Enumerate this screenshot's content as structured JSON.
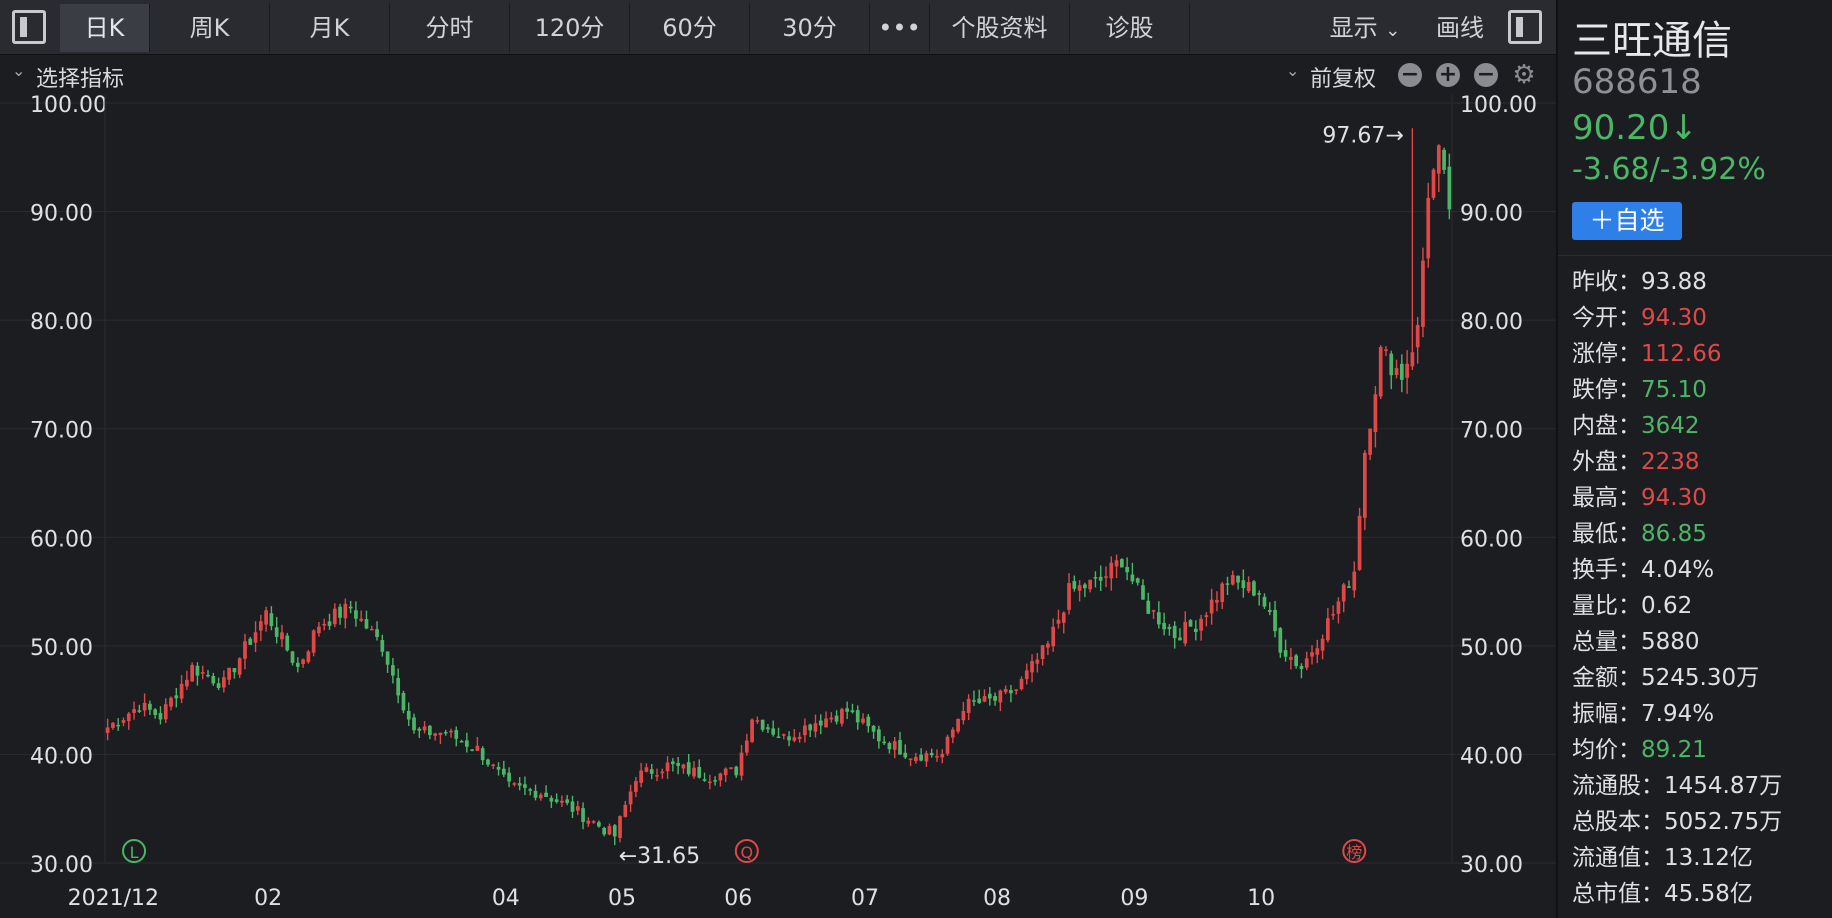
{
  "toolbar": {
    "tabs": [
      {
        "label": "日K",
        "active": true
      },
      {
        "label": "周K"
      },
      {
        "label": "月K"
      },
      {
        "label": "分时"
      },
      {
        "label": "120分"
      },
      {
        "label": "60分"
      },
      {
        "label": "30分"
      },
      {
        "label": "•••"
      },
      {
        "label": "个股资料"
      },
      {
        "label": "诊股"
      }
    ],
    "display_label": "显示",
    "draw_label": "画线"
  },
  "subbar": {
    "indicator_label": "选择指标",
    "adjust_label": "前复权"
  },
  "sidebar": {
    "name": "三旺通信",
    "code": "688618",
    "price": "90.20↓",
    "change": "-3.68/-3.92%",
    "fav_label": "＋自选",
    "stats": [
      {
        "label": "昨收：",
        "value": "93.88",
        "color": "white"
      },
      {
        "label": "今开：",
        "value": "94.30",
        "color": "red"
      },
      {
        "label": "涨停：",
        "value": "112.66",
        "color": "red"
      },
      {
        "label": "跌停：",
        "value": "75.10",
        "color": "green"
      },
      {
        "label": "内盘：",
        "value": "3642",
        "color": "green"
      },
      {
        "label": "外盘：",
        "value": "2238",
        "color": "red"
      },
      {
        "label": "最高：",
        "value": "94.30",
        "color": "red"
      },
      {
        "label": "最低：",
        "value": "86.85",
        "color": "green"
      },
      {
        "label": "换手：",
        "value": "4.04%",
        "color": "white"
      },
      {
        "label": "量比：",
        "value": "0.62",
        "color": "white"
      },
      {
        "label": "总量：",
        "value": "5880",
        "color": "white"
      },
      {
        "label": "金额：",
        "value": "5245.30万",
        "color": "white"
      },
      {
        "label": "振幅：",
        "value": "7.94%",
        "color": "white"
      },
      {
        "label": "均价：",
        "value": "89.21",
        "color": "green"
      },
      {
        "label": "流通股：",
        "value": "1454.87万",
        "color": "white"
      },
      {
        "label": "总股本：",
        "value": "5052.75万",
        "color": "white"
      },
      {
        "label": "流通值：",
        "value": "13.12亿",
        "color": "white"
      },
      {
        "label": "总市值：",
        "value": "45.58亿",
        "color": "white"
      }
    ]
  },
  "colors": {
    "up": "#e04848",
    "down": "#4bb766",
    "grid": "#2b2c31",
    "axis_text": "#e0e0e3"
  },
  "chart_data": {
    "type": "candlestick",
    "ylim": [
      30,
      100
    ],
    "yticks": [
      "100.00",
      "90.00",
      "80.00",
      "70.00",
      "60.00",
      "50.00",
      "40.00",
      "30.00"
    ],
    "xticks": [
      {
        "label": "2021/12",
        "index": 0
      },
      {
        "label": "02",
        "index": 30
      },
      {
        "label": "04",
        "index": 75
      },
      {
        "label": "05",
        "index": 97
      },
      {
        "label": "06",
        "index": 119
      },
      {
        "label": "07",
        "index": 143
      },
      {
        "label": "08",
        "index": 168
      },
      {
        "label": "09",
        "index": 194
      },
      {
        "label": "10",
        "index": 218
      }
    ],
    "annotations": [
      {
        "text": "97.67→",
        "index": 247,
        "value": 97.67,
        "side": "left"
      },
      {
        "text": "←31.65",
        "index": 96,
        "value": 31.65,
        "side": "right"
      }
    ],
    "markers": [
      {
        "text": "L",
        "index": 5,
        "color": "#4bb766"
      },
      {
        "text": "Q",
        "index": 121,
        "color": "#e04848"
      },
      {
        "text": "榜",
        "index": 236,
        "color": "#e04848"
      }
    ],
    "anchors": [
      [
        0,
        42.5
      ],
      [
        6,
        44.5
      ],
      [
        10,
        43.5
      ],
      [
        16,
        48
      ],
      [
        22,
        46.5
      ],
      [
        30,
        53
      ],
      [
        36,
        48
      ],
      [
        40,
        52
      ],
      [
        46,
        53.5
      ],
      [
        52,
        50
      ],
      [
        58,
        42
      ],
      [
        64,
        42
      ],
      [
        70,
        40.5
      ],
      [
        76,
        37
      ],
      [
        82,
        36.5
      ],
      [
        88,
        35
      ],
      [
        96,
        32.5
      ],
      [
        100,
        38
      ],
      [
        106,
        39
      ],
      [
        114,
        38
      ],
      [
        119,
        38.5
      ],
      [
        122,
        43.5
      ],
      [
        128,
        41.5
      ],
      [
        134,
        43
      ],
      [
        140,
        44
      ],
      [
        146,
        41.5
      ],
      [
        152,
        40
      ],
      [
        158,
        40
      ],
      [
        162,
        44.5
      ],
      [
        168,
        45
      ],
      [
        172,
        46
      ],
      [
        178,
        50
      ],
      [
        182,
        55
      ],
      [
        188,
        56
      ],
      [
        192,
        58
      ],
      [
        196,
        54
      ],
      [
        202,
        51
      ],
      [
        206,
        52
      ],
      [
        212,
        56
      ],
      [
        218,
        55
      ],
      [
        222,
        50
      ],
      [
        226,
        48
      ],
      [
        232,
        53
      ],
      [
        236,
        57
      ],
      [
        238,
        68
      ],
      [
        241,
        77
      ],
      [
        245,
        75
      ],
      [
        248,
        79
      ],
      [
        250,
        92
      ],
      [
        252,
        95
      ],
      [
        254,
        90.2
      ]
    ],
    "count": 255
  }
}
